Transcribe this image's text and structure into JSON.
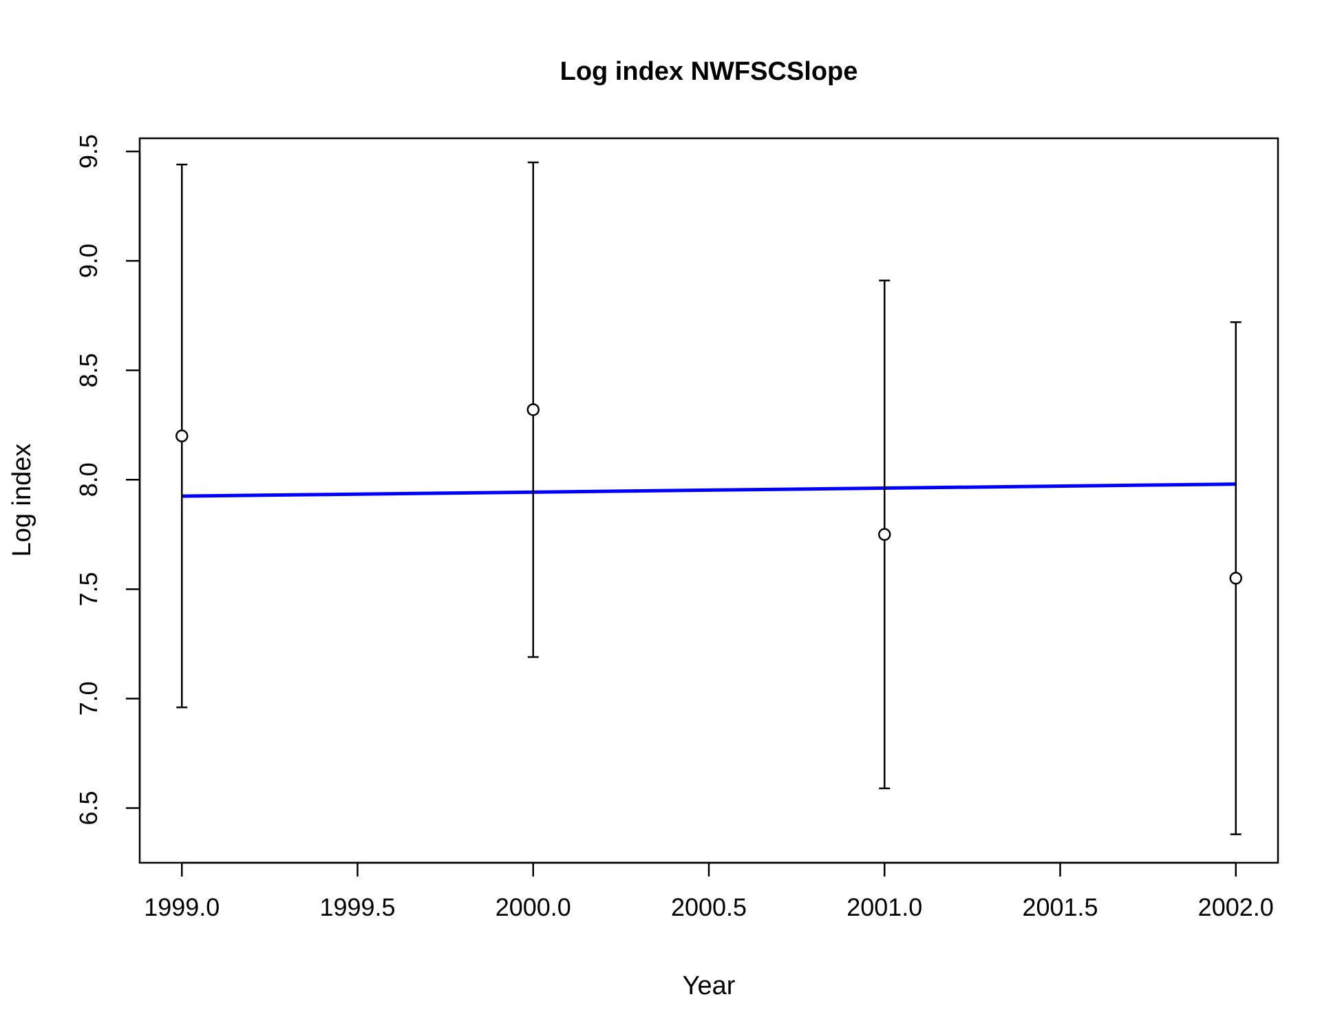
{
  "chart_data": {
    "type": "scatter",
    "title": "Log index NWFSCSlope",
    "xlabel": "Year",
    "ylabel": "Log index",
    "xlim": [
      1998.88,
      2002.12
    ],
    "ylim": [
      6.25,
      9.56
    ],
    "x_ticks": [
      1999.0,
      1999.5,
      2000.0,
      2000.5,
      2001.0,
      2001.5,
      2002.0
    ],
    "x_tick_labels": [
      "1999.0",
      "1999.5",
      "2000.0",
      "2000.5",
      "2001.0",
      "2001.5",
      "2002.0"
    ],
    "y_ticks": [
      6.5,
      7.0,
      7.5,
      8.0,
      8.5,
      9.0,
      9.5
    ],
    "y_tick_labels": [
      "6.5",
      "7.0",
      "7.5",
      "8.0",
      "8.5",
      "9.0",
      "9.5"
    ],
    "grid": false,
    "points": [
      {
        "x": 1999,
        "y": 8.2,
        "lower": 6.96,
        "upper": 9.44
      },
      {
        "x": 2000,
        "y": 8.32,
        "lower": 7.19,
        "upper": 9.45
      },
      {
        "x": 2001,
        "y": 7.75,
        "lower": 6.59,
        "upper": 8.91
      },
      {
        "x": 2002,
        "y": 7.55,
        "lower": 6.38,
        "upper": 8.72
      }
    ],
    "fit_line": {
      "x": [
        1999,
        2002
      ],
      "y": [
        7.925,
        7.98
      ],
      "color": "#0000ff"
    },
    "colors": {
      "points": "#000000",
      "error_bars": "#000000",
      "fit_line": "#0000ff"
    }
  }
}
